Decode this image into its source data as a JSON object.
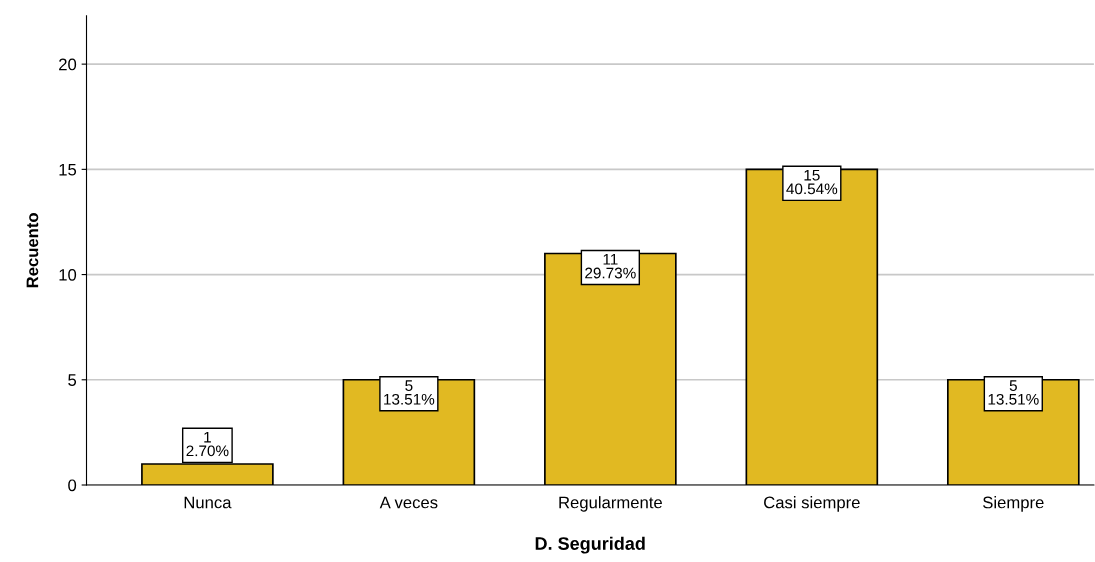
{
  "chart_data": {
    "type": "bar",
    "xlabel": "D. Seguridad",
    "ylabel": "Recuento",
    "categories": [
      "Nunca",
      "A veces",
      "Regularmente",
      "Casi siempre",
      "Siempre"
    ],
    "values": [
      1,
      5,
      11,
      15,
      5
    ],
    "value_labels": [
      "1\n2.70%",
      "5\n13.51%",
      "11\n29.73%",
      "15\n40.54%",
      "5\n13.51%"
    ],
    "color": "#e1b922",
    "ylim": [
      0,
      22.3
    ],
    "yticks": [
      0,
      5,
      10,
      15,
      20
    ],
    "grid": "y",
    "legend": false
  }
}
